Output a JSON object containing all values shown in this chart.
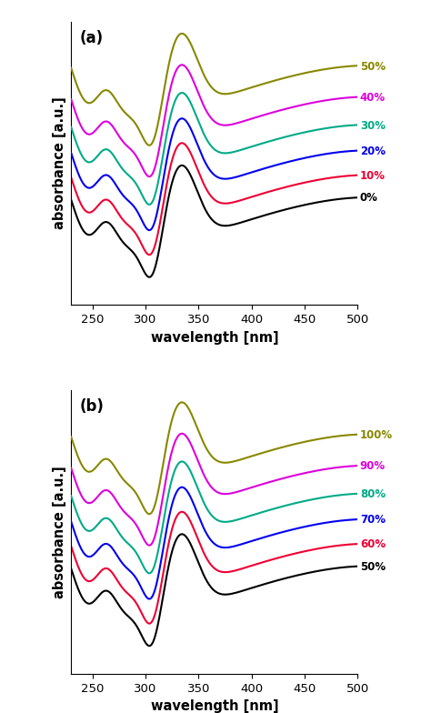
{
  "panel_a_labels": [
    "0%",
    "10%",
    "20%",
    "30%",
    "40%",
    "50%"
  ],
  "panel_b_labels": [
    "50%",
    "60%",
    "70%",
    "80%",
    "90%",
    "100%"
  ],
  "panel_a_colors": [
    "#000000",
    "#ee0033",
    "#0000ee",
    "#00aa88",
    "#dd00dd",
    "#888800"
  ],
  "panel_b_colors": [
    "#000000",
    "#ee0033",
    "#0000ee",
    "#00aa88",
    "#dd00dd",
    "#888800"
  ],
  "xlabel": "wavelength [nm]",
  "ylabel": "absorbance [a.u.]",
  "xmin": 230,
  "xmax": 500,
  "label_a": "(a)",
  "label_b": "(b)",
  "linewidth": 1.5
}
